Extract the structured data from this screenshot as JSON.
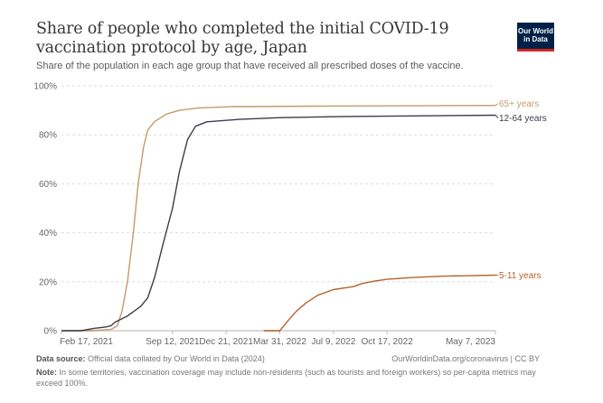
{
  "header": {
    "title": "Share of people who completed the initial COVID-19 vaccination protocol by age, Japan",
    "subtitle": "Share of the population in each age group that have received all prescribed doses of the vaccine.",
    "logo_line1": "Our World",
    "logo_line2": "in Data"
  },
  "footer": {
    "source_label": "Data source:",
    "source_text": "Official data collated by Our World in Data (2024)",
    "link_text": "OurWorldinData.org/coronavirus | CC BY",
    "note_label": "Note:",
    "note_text": "In some territories, vaccination coverage may include non-residents (such as tourists and foreign workers) so per-capita metrics may exceed 100%."
  },
  "chart_data": {
    "type": "line",
    "title": "Share of people who completed the initial COVID-19 vaccination protocol by age, Japan",
    "xlabel": "",
    "ylabel": "",
    "x_start": "2021-02-17",
    "x_end": "2023-05-07",
    "ylim": [
      0,
      100
    ],
    "y_ticks": [
      0,
      20,
      40,
      60,
      80,
      100
    ],
    "y_tick_labels": [
      "0%",
      "20%",
      "40%",
      "60%",
      "80%",
      "100%"
    ],
    "x_ticks": [
      "2021-02-17",
      "2021-09-12",
      "2021-12-21",
      "2022-03-31",
      "2022-07-09",
      "2022-10-17",
      "2023-05-07"
    ],
    "x_tick_labels": [
      "Feb 17, 2021",
      "Sep 12, 2021",
      "Dec 21, 2021",
      "Mar 31, 2022",
      "Jul 9, 2022",
      "Oct 17, 2022",
      "May 7, 2023"
    ],
    "grid": true,
    "legend": "right-inline",
    "series": [
      {
        "name": "65+ years",
        "color": "#c49a6c",
        "points": [
          [
            "2021-02-17",
            0
          ],
          [
            "2021-04-15",
            0
          ],
          [
            "2021-05-20",
            0.5
          ],
          [
            "2021-06-01",
            2
          ],
          [
            "2021-06-10",
            8
          ],
          [
            "2021-06-20",
            20
          ],
          [
            "2021-07-01",
            40
          ],
          [
            "2021-07-10",
            60
          ],
          [
            "2021-07-20",
            75
          ],
          [
            "2021-07-28",
            82
          ],
          [
            "2021-08-10",
            85.5
          ],
          [
            "2021-09-01",
            88.5
          ],
          [
            "2021-09-25",
            90
          ],
          [
            "2021-11-01",
            91
          ],
          [
            "2022-01-01",
            91.5
          ],
          [
            "2022-06-01",
            91.7
          ],
          [
            "2023-05-07",
            92
          ]
        ]
      },
      {
        "name": "12-64 years",
        "color": "#3d3d4b",
        "points": [
          [
            "2021-02-17",
            0
          ],
          [
            "2021-03-25",
            0
          ],
          [
            "2021-04-20",
            1
          ],
          [
            "2021-05-10",
            1.5
          ],
          [
            "2021-05-20",
            2
          ],
          [
            "2021-05-28",
            3.5
          ],
          [
            "2021-06-20",
            6
          ],
          [
            "2021-07-15",
            10
          ],
          [
            "2021-07-28",
            13.5
          ],
          [
            "2021-08-10",
            22
          ],
          [
            "2021-08-25",
            35
          ],
          [
            "2021-09-12",
            50
          ],
          [
            "2021-09-25",
            65
          ],
          [
            "2021-10-10",
            78
          ],
          [
            "2021-10-25",
            83.5
          ],
          [
            "2021-11-15",
            85.3
          ],
          [
            "2022-01-15",
            86.3
          ],
          [
            "2022-04-01",
            87
          ],
          [
            "2022-08-01",
            87.5
          ],
          [
            "2023-05-07",
            88
          ]
        ]
      },
      {
        "name": "5-11 years",
        "color": "#b5652d",
        "points": [
          [
            "2022-03-01",
            0
          ],
          [
            "2022-03-31",
            0
          ],
          [
            "2022-04-15",
            4
          ],
          [
            "2022-05-01",
            8
          ],
          [
            "2022-05-20",
            11.5
          ],
          [
            "2022-06-10",
            14.5
          ],
          [
            "2022-07-09",
            16.8
          ],
          [
            "2022-08-15",
            18
          ],
          [
            "2022-09-01",
            19.3
          ],
          [
            "2022-09-25",
            20.3
          ],
          [
            "2022-10-17",
            21
          ],
          [
            "2022-12-01",
            21.7
          ],
          [
            "2023-02-01",
            22.3
          ],
          [
            "2023-05-07",
            22.7
          ]
        ]
      }
    ]
  }
}
